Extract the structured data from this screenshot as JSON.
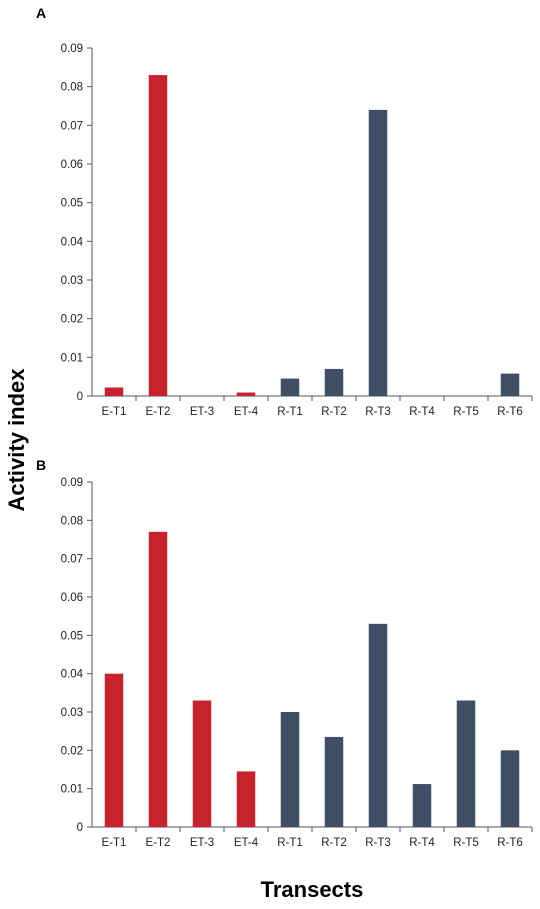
{
  "figure": {
    "ylabel": "Activity index",
    "xlabel": "Transects"
  },
  "colors": {
    "E": "#c8232c",
    "R": "#3f4f65"
  },
  "chart_data": [
    {
      "type": "bar",
      "panel": "A",
      "categories": [
        "E-T1",
        "E-T2",
        "ET-3",
        "ET-4",
        "R-T1",
        "R-T2",
        "R-T3",
        "R-T4",
        "R-T5",
        "R-T6"
      ],
      "groups": [
        "E",
        "E",
        "E",
        "E",
        "R",
        "R",
        "R",
        "R",
        "R",
        "R"
      ],
      "values": [
        0.0022,
        0.083,
        0,
        0.0009,
        0.0045,
        0.007,
        0.074,
        0,
        0,
        0.0058
      ],
      "ylim": [
        0,
        0.09
      ],
      "yticks": [
        "0",
        "0.01",
        "0.02",
        "0.03",
        "0.04",
        "0.05",
        "0.06",
        "0.07",
        "0.08",
        "0.09"
      ],
      "grid": false
    },
    {
      "type": "bar",
      "panel": "B",
      "categories": [
        "E-T1",
        "E-T2",
        "ET-3",
        "ET-4",
        "R-T1",
        "R-T2",
        "R-T3",
        "R-T4",
        "R-T5",
        "R-T6"
      ],
      "groups": [
        "E",
        "E",
        "E",
        "E",
        "R",
        "R",
        "R",
        "R",
        "R",
        "R"
      ],
      "values": [
        0.04,
        0.077,
        0.033,
        0.0145,
        0.03,
        0.0235,
        0.053,
        0.0112,
        0.033,
        0.02
      ],
      "ylim": [
        0,
        0.09
      ],
      "yticks": [
        "0",
        "0.01",
        "0.02",
        "0.03",
        "0.04",
        "0.05",
        "0.06",
        "0.07",
        "0.08",
        "0.09"
      ],
      "grid": false
    }
  ]
}
